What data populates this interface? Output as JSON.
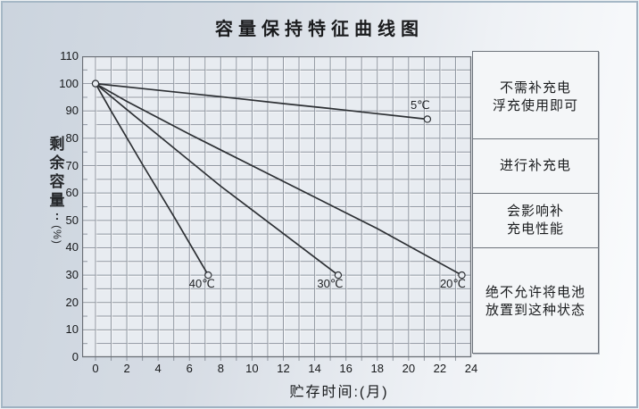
{
  "chart_data": {
    "type": "line",
    "title": "容量保持特征曲线图",
    "xlabel": "贮存时间:(月)",
    "ylabel": "剩余容量:(%)",
    "ylabel_chars": [
      "剩",
      "余",
      "容",
      "量"
    ],
    "ylabel_colon": ":",
    "ylabel_unit": "(%)",
    "xlim": [
      0,
      24
    ],
    "ylim": [
      0,
      110
    ],
    "x_ticks": [
      0,
      2,
      4,
      6,
      8,
      10,
      12,
      14,
      16,
      18,
      20,
      22,
      24
    ],
    "y_ticks": [
      0,
      10,
      20,
      30,
      40,
      50,
      60,
      70,
      80,
      90,
      100,
      110
    ],
    "x_grid_step": 1,
    "y_grid_step": 5,
    "grid": true,
    "series": [
      {
        "name": "5℃",
        "points": [
          [
            0,
            100
          ],
          [
            3,
            98.2
          ],
          [
            6,
            96.4
          ],
          [
            9,
            94.6
          ],
          [
            12,
            92.7
          ],
          [
            15,
            90.9
          ],
          [
            18,
            89
          ],
          [
            21.2,
            87
          ]
        ],
        "label_offset": [
          -8,
          -15
        ]
      },
      {
        "name": "20℃",
        "points": [
          [
            0,
            100
          ],
          [
            2,
            93.5
          ],
          [
            6,
            81.5
          ],
          [
            10,
            70
          ],
          [
            14,
            58.5
          ],
          [
            18,
            47
          ],
          [
            23.4,
            30
          ]
        ],
        "label_offset": [
          -10,
          10
        ]
      },
      {
        "name": "30℃",
        "points": [
          [
            0,
            100
          ],
          [
            2,
            90.5
          ],
          [
            5,
            76.5
          ],
          [
            8,
            62.5
          ],
          [
            11,
            49.5
          ],
          [
            15.5,
            30
          ]
        ],
        "label_offset": [
          -9,
          10
        ]
      },
      {
        "name": "40℃",
        "points": [
          [
            0,
            100
          ],
          [
            1,
            90
          ],
          [
            3,
            70.5
          ],
          [
            5,
            51.5
          ],
          [
            7.2,
            30
          ]
        ],
        "label_offset": [
          -7,
          10
        ]
      }
    ],
    "right_panel": {
      "sections": [
        {
          "lines": [
            "不需补充电",
            "浮充使用即可"
          ],
          "value_range": [
            80,
            110
          ]
        },
        {
          "lines": [
            "进行补充电"
          ],
          "value_range": [
            60,
            80
          ]
        },
        {
          "lines": [
            "会影响补",
            "充电性能"
          ],
          "value_range": [
            40,
            60
          ]
        },
        {
          "lines": [
            "绝不允许将电池",
            "放置到这种状态"
          ],
          "value_range": [
            0,
            40
          ]
        }
      ]
    },
    "colors": {
      "curve": "#2d3034",
      "grid": "#8f96a0",
      "grid_highlight": "#ffffff",
      "plot_border": "#6b7077",
      "plot_bg": "#e8ecf1",
      "panel_bg": "#f4f6f8",
      "frame_border": "#a6b8c6",
      "text": "#17191b",
      "marker_fill": "#e8ecf1"
    }
  }
}
